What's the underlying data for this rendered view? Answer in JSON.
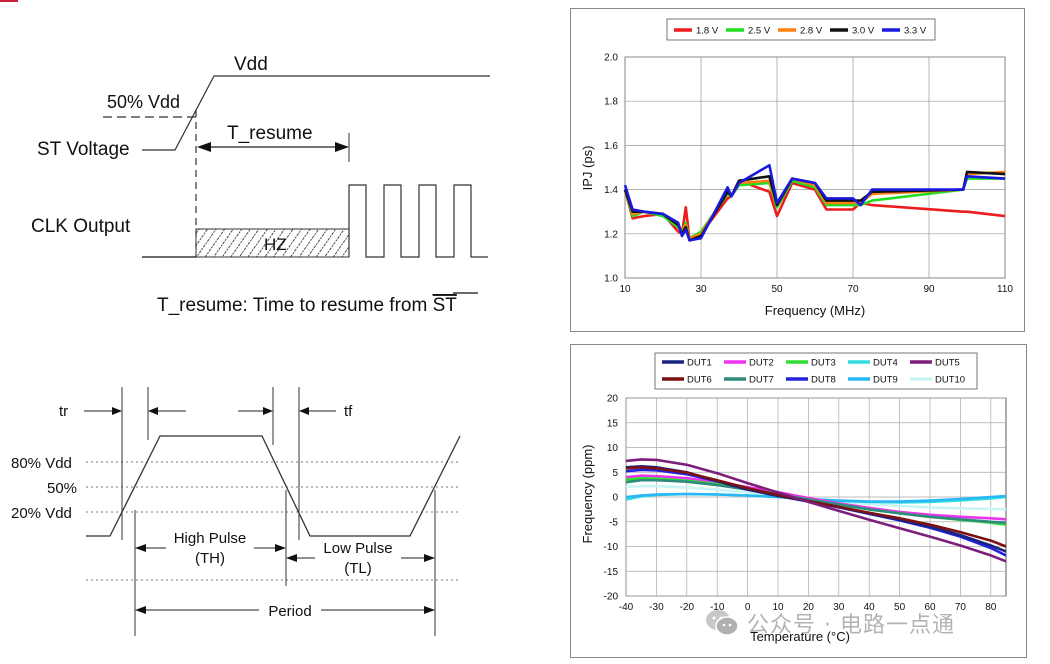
{
  "resume_diagram": {
    "vdd": "Vdd",
    "half_vdd": "50% Vdd",
    "st_voltage": "ST Voltage",
    "t_resume": "T_resume",
    "clk_output": "CLK Output",
    "hz": "HZ",
    "caption_prefix": "T_resume: Time to resume from ",
    "caption_st": "ST"
  },
  "pulse_diagram": {
    "tr": "tr",
    "tf": "tf",
    "level_80": "80% Vdd",
    "level_50": "50%",
    "level_20": "20% Vdd",
    "high_pulse": "High Pulse",
    "th": "(TH)",
    "low_pulse": "Low Pulse",
    "tl": "(TL)",
    "period": "Period"
  },
  "watermark": {
    "text": "公众号 · 电路一点通"
  },
  "chart_data": [
    {
      "type": "line",
      "title": "",
      "xlabel": "Frequency (MHz)",
      "ylabel": "IPJ (ps)",
      "xlim": [
        10,
        110
      ],
      "ylim": [
        1.0,
        2.0
      ],
      "xticks": [
        "10",
        "30",
        "50",
        "70",
        "90",
        "110"
      ],
      "yticks": [
        "1.0",
        "1.2",
        "1.4",
        "1.6",
        "1.8",
        "2.0"
      ],
      "x": [
        10,
        12,
        15,
        20,
        24,
        25,
        26,
        27,
        30,
        37,
        38,
        40,
        48,
        50,
        54,
        60,
        63,
        65,
        70,
        72,
        75,
        99,
        100,
        110
      ],
      "series": [
        {
          "name": "1.8 V",
          "color": "#ee1c1c",
          "values": [
            1.4,
            1.27,
            1.28,
            1.29,
            1.21,
            1.2,
            1.32,
            1.17,
            1.2,
            1.36,
            1.37,
            1.44,
            1.39,
            1.28,
            1.43,
            1.4,
            1.31,
            1.31,
            1.31,
            1.34,
            1.33,
            1.3,
            1.3,
            1.28
          ]
        },
        {
          "name": "2.5 V",
          "color": "#22dd22",
          "values": [
            1.4,
            1.28,
            1.3,
            1.28,
            1.23,
            1.21,
            1.25,
            1.18,
            1.21,
            1.38,
            1.37,
            1.42,
            1.43,
            1.32,
            1.44,
            1.41,
            1.33,
            1.33,
            1.33,
            1.33,
            1.35,
            1.4,
            1.45,
            1.45
          ]
        },
        {
          "name": "2.8 V",
          "color": "#ff7f11",
          "values": [
            1.4,
            1.29,
            1.3,
            1.29,
            1.24,
            1.21,
            1.24,
            1.18,
            1.2,
            1.39,
            1.37,
            1.43,
            1.44,
            1.33,
            1.45,
            1.42,
            1.34,
            1.34,
            1.34,
            1.34,
            1.38,
            1.4,
            1.47,
            1.48
          ]
        },
        {
          "name": "3.0 V",
          "color": "#111111",
          "values": [
            1.4,
            1.3,
            1.3,
            1.29,
            1.24,
            1.2,
            1.23,
            1.17,
            1.19,
            1.39,
            1.37,
            1.44,
            1.46,
            1.33,
            1.45,
            1.43,
            1.35,
            1.35,
            1.35,
            1.35,
            1.39,
            1.4,
            1.48,
            1.47
          ]
        },
        {
          "name": "3.3 V",
          "color": "#1a1adf",
          "values": [
            1.42,
            1.31,
            1.3,
            1.29,
            1.25,
            1.19,
            1.22,
            1.17,
            1.18,
            1.41,
            1.37,
            1.43,
            1.51,
            1.34,
            1.45,
            1.43,
            1.36,
            1.36,
            1.36,
            1.33,
            1.4,
            1.4,
            1.46,
            1.45
          ]
        }
      ]
    },
    {
      "type": "line",
      "title": "",
      "xlabel": "Temperature (°C)",
      "ylabel": "Frequency (ppm)",
      "xlim": [
        -40,
        85
      ],
      "ylim": [
        -20,
        20
      ],
      "xticks": [
        "-40",
        "-30",
        "-20",
        "-10",
        "0",
        "10",
        "20",
        "30",
        "40",
        "50",
        "60",
        "70",
        "80"
      ],
      "yticks": [
        "20",
        "15",
        "10",
        "5",
        "0",
        "-5",
        "-10",
        "-15",
        "-20"
      ],
      "x": [
        -40,
        -35,
        -30,
        -20,
        -10,
        0,
        10,
        20,
        30,
        40,
        50,
        60,
        70,
        80,
        85
      ],
      "series": [
        {
          "name": "DUT1",
          "color": "#1a237e",
          "values": [
            6.0,
            6.2,
            6.0,
            5.0,
            3.2,
            1.5,
            0.2,
            -0.9,
            -2.0,
            -3.3,
            -4.6,
            -6.0,
            -7.7,
            -9.8,
            -11.0
          ]
        },
        {
          "name": "DUT2",
          "color": "#ee33ee",
          "values": [
            4.0,
            4.3,
            4.2,
            3.8,
            3.0,
            2.0,
            1.0,
            -0.2,
            -1.3,
            -2.2,
            -3.0,
            -3.6,
            -4.0,
            -4.3,
            -4.5
          ]
        },
        {
          "name": "DUT3",
          "color": "#33dd33",
          "values": [
            3.5,
            3.8,
            3.7,
            3.3,
            2.6,
            1.6,
            0.6,
            -0.5,
            -1.5,
            -2.5,
            -3.3,
            -4.0,
            -4.6,
            -5.2,
            -5.6
          ]
        },
        {
          "name": "DUT4",
          "color": "#33dddd",
          "values": [
            -0.5,
            0.1,
            0.4,
            0.6,
            0.5,
            0.3,
            0.0,
            -0.4,
            -0.8,
            -1.0,
            -1.1,
            -1.0,
            -0.7,
            -0.3,
            0.0
          ]
        },
        {
          "name": "DUT5",
          "color": "#7b1f7b",
          "values": [
            7.3,
            7.6,
            7.5,
            6.5,
            4.8,
            2.8,
            0.9,
            -1.0,
            -2.8,
            -4.6,
            -6.3,
            -8.0,
            -9.8,
            -11.8,
            -13.0
          ]
        },
        {
          "name": "DUT6",
          "color": "#7b1111",
          "values": [
            5.8,
            6.0,
            5.8,
            4.9,
            3.4,
            1.8,
            0.4,
            -0.8,
            -2.0,
            -3.2,
            -4.3,
            -5.6,
            -7.1,
            -8.8,
            -10.0
          ]
        },
        {
          "name": "DUT7",
          "color": "#2e8b7b",
          "values": [
            3.0,
            3.4,
            3.4,
            3.1,
            2.4,
            1.5,
            0.5,
            -0.5,
            -1.5,
            -2.5,
            -3.3,
            -4.0,
            -4.5,
            -5.0,
            -5.2
          ]
        },
        {
          "name": "DUT8",
          "color": "#2222dd",
          "values": [
            5.2,
            5.5,
            5.4,
            4.6,
            3.2,
            1.7,
            0.3,
            -0.9,
            -2.1,
            -3.4,
            -4.7,
            -6.2,
            -8.0,
            -10.3,
            -11.8
          ]
        },
        {
          "name": "DUT9",
          "color": "#29b6f6",
          "values": [
            0.0,
            0.3,
            0.5,
            0.6,
            0.5,
            0.3,
            0.0,
            -0.4,
            -0.7,
            -0.9,
            -0.9,
            -0.7,
            -0.4,
            0.0,
            0.2
          ]
        },
        {
          "name": "DUT10",
          "color": "#c9f5f5",
          "values": [
            2.0,
            2.2,
            2.2,
            1.9,
            1.5,
            0.9,
            0.3,
            -0.3,
            -0.9,
            -1.4,
            -1.8,
            -2.1,
            -2.3,
            -2.4,
            -2.5
          ]
        }
      ]
    }
  ]
}
